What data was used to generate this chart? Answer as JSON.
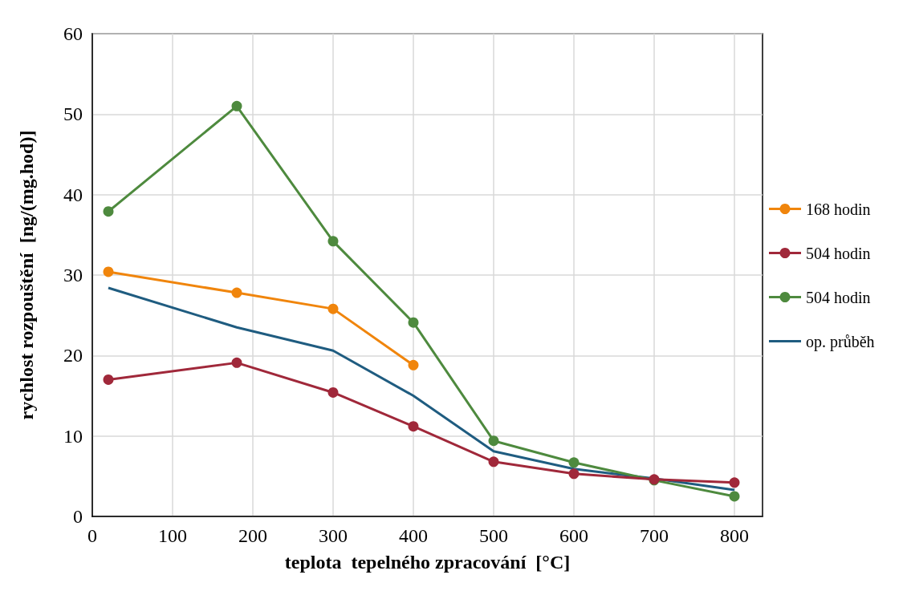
{
  "chart_data": {
    "type": "line",
    "xlabel": "teplota  tepelného zpracování  [°C]",
    "ylabel": "rychlost rozpouštění  [ng/(mg.hod)]",
    "xlim": [
      0,
      835
    ],
    "xticks": [
      0,
      100,
      200,
      300,
      400,
      500,
      600,
      700,
      800
    ],
    "ylim": [
      0,
      60
    ],
    "yticks": [
      0,
      10,
      20,
      30,
      40,
      50,
      60
    ],
    "grid": true,
    "legend": "right",
    "marker": "circle",
    "series": [
      {
        "name": "168 hodin",
        "color": "#f0850c",
        "x": [
          20,
          180,
          300,
          400
        ],
        "values": [
          30.4,
          27.8,
          25.8,
          18.8
        ]
      },
      {
        "name": "504 hodin",
        "color": "#a0283a",
        "x": [
          20,
          180,
          300,
          400,
          500,
          600,
          700,
          800
        ],
        "values": [
          17.0,
          19.1,
          15.4,
          11.2,
          6.8,
          5.3,
          4.6,
          4.2
        ]
      },
      {
        "name": "504 hodin",
        "color": "#4e8a3e",
        "x": [
          20,
          180,
          300,
          400,
          500,
          600,
          700,
          800
        ],
        "values": [
          37.9,
          51.0,
          34.2,
          24.1,
          9.4,
          6.7,
          4.5,
          2.5
        ]
      },
      {
        "name": "op. průběh",
        "color": "#1f5c80",
        "marker": "none",
        "x": [
          20,
          180,
          300,
          400,
          500,
          600,
          700,
          800
        ],
        "values": [
          28.4,
          23.5,
          20.6,
          15.0,
          8.1,
          5.9,
          4.7,
          3.3
        ]
      }
    ]
  }
}
